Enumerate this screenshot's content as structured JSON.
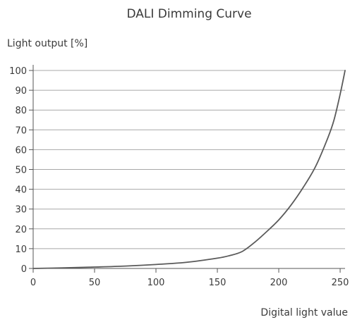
{
  "chart_data": {
    "type": "line",
    "title": "DALI Dimming Curve",
    "xlabel": "Digital light value",
    "ylabel": "Light output [%]",
    "xlim": [
      0,
      254
    ],
    "ylim": [
      0,
      100
    ],
    "x_ticks": [
      0,
      50,
      100,
      150,
      200,
      250
    ],
    "y_ticks": [
      0,
      10,
      20,
      30,
      40,
      50,
      60,
      70,
      80,
      90,
      100
    ],
    "grid": "horizontal",
    "colors": {
      "line": "#5a5a5a",
      "grid": "#a8a8a8",
      "axis": "#555555",
      "text": "#3a3a3a"
    },
    "series": [
      {
        "x": [
          0,
          25,
          50,
          75,
          100,
          125,
          150,
          160,
          170,
          180,
          190,
          200,
          210,
          220,
          230,
          240,
          245,
          250,
          254
        ],
        "y": [
          0,
          0.3,
          0.7,
          1.2,
          2,
          3.1,
          5.2,
          6.5,
          8.5,
          13,
          18.5,
          24.5,
          32,
          41,
          51.5,
          66,
          75,
          88,
          100
        ]
      }
    ]
  }
}
